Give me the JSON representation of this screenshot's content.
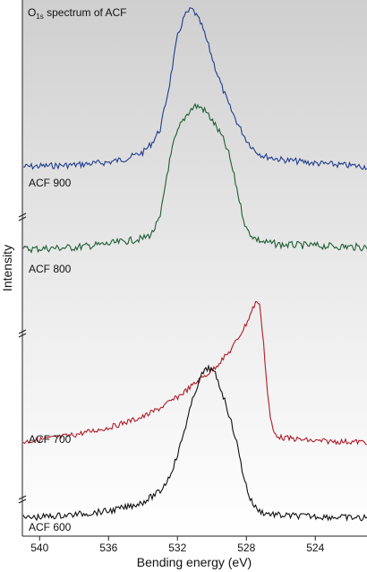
{
  "chart_data": {
    "type": "line",
    "title_main": "O",
    "title_sub": "1s",
    "title_rest": " spectrum of ACF",
    "xlabel": "Bending energy (eV)",
    "ylabel": "Intensity",
    "x_reversed": true,
    "xlim": [
      541,
      521
    ],
    "x_ticks": [
      540,
      536,
      532,
      528,
      524
    ],
    "background": "gradient-grey-to-white",
    "series": [
      {
        "name": "ACF 900",
        "color": "#1f3d8f",
        "noise": 3.5,
        "x": [
          541,
          538,
          536,
          535,
          534,
          533.5,
          533,
          532.5,
          532,
          531.6,
          531.2,
          531,
          530.6,
          530.2,
          529.8,
          529.4,
          529,
          528.5,
          528,
          527.5,
          527,
          526,
          524,
          521
        ],
        "y": [
          0,
          2,
          5,
          9,
          16,
          26,
          42,
          88,
          145,
          168,
          176,
          172,
          158,
          135,
          110,
          88,
          68,
          48,
          30,
          18,
          12,
          8,
          4,
          0
        ]
      },
      {
        "name": "ACF 800",
        "color": "#1d5e34",
        "noise": 4.0,
        "x": [
          541,
          538,
          536,
          535,
          534,
          533.5,
          533,
          532.6,
          532.2,
          531.8,
          531.4,
          531,
          530.6,
          530.2,
          529.8,
          529.4,
          529,
          528.6,
          528.3,
          528,
          527.5,
          527,
          526,
          524,
          521
        ],
        "y": [
          0,
          2,
          6,
          9,
          12,
          17,
          35,
          85,
          120,
          140,
          152,
          160,
          158,
          150,
          138,
          125,
          105,
          72,
          45,
          22,
          12,
          8,
          5,
          4,
          2
        ]
      },
      {
        "name": "ACF 700",
        "color": "#b01b2a",
        "noise": 3.0,
        "x": [
          541,
          539,
          538,
          536,
          535,
          534,
          533,
          532,
          531,
          530,
          529,
          528.5,
          528,
          527.6,
          527.4,
          527.2,
          527,
          526.8,
          526.6,
          526.4,
          526,
          525,
          524,
          521
        ],
        "y": [
          0,
          5,
          8,
          16,
          22,
          28,
          38,
          50,
          65,
          80,
          100,
          115,
          132,
          150,
          158,
          150,
          110,
          60,
          25,
          10,
          5,
          3,
          1,
          0
        ]
      },
      {
        "name": "ACF 600",
        "color": "#111111",
        "noise": 3.5,
        "x": [
          541,
          538,
          536,
          535,
          534,
          533,
          532.5,
          532,
          531.5,
          531,
          530.6,
          530.2,
          530,
          529.8,
          529.4,
          529,
          528.6,
          528.2,
          527.8,
          527.4,
          527,
          526,
          524,
          521
        ],
        "y": [
          0,
          4,
          8,
          12,
          18,
          30,
          45,
          70,
          105,
          140,
          160,
          168,
          165,
          160,
          140,
          115,
          88,
          50,
          22,
          10,
          6,
          3,
          2,
          0
        ]
      }
    ]
  }
}
